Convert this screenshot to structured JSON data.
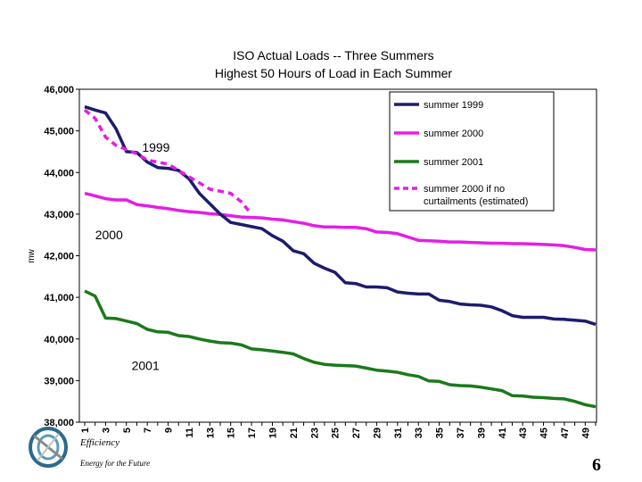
{
  "chart_data": {
    "type": "line",
    "title_lines": [
      "ISO Actual Loads -- Three Summers",
      "Highest 50 Hours of Load in Each Summer"
    ],
    "ylabel": "mw",
    "xlabel": "",
    "ylim": [
      38000,
      46000
    ],
    "yticks": [
      38000,
      39000,
      40000,
      41000,
      42000,
      43000,
      44000,
      45000,
      46000
    ],
    "ytick_labels": [
      "38,000",
      "39,000",
      "40,000",
      "41,000",
      "42,000",
      "43,000",
      "44,000",
      "45,000",
      "46,000"
    ],
    "xlim": [
      1,
      50
    ],
    "xticks": [
      1,
      3,
      5,
      7,
      9,
      11,
      13,
      15,
      17,
      19,
      21,
      23,
      25,
      27,
      29,
      31,
      33,
      35,
      37,
      39,
      41,
      43,
      45,
      47,
      49
    ],
    "xtick_labels": [
      "1",
      "3",
      "5",
      "7",
      "9",
      "11",
      "13",
      "15",
      "17",
      "19",
      "21",
      "23",
      "25",
      "27",
      "29",
      "31",
      "33",
      "35",
      "37",
      "39",
      "41",
      "43",
      "45",
      "47",
      "49"
    ],
    "grid": false,
    "legend_position": "top-right",
    "series": [
      {
        "name": "summer 1999",
        "color": "#1c1c6e",
        "style": "solid",
        "x": [
          1,
          2,
          3,
          4,
          5,
          6,
          7,
          8,
          9,
          10,
          11,
          12,
          13,
          14,
          15,
          16,
          17,
          18,
          19,
          20,
          21,
          22,
          23,
          24,
          25,
          26,
          27,
          28,
          29,
          30,
          31,
          32,
          33,
          34,
          35,
          36,
          37,
          38,
          39,
          40,
          41,
          42,
          43,
          44,
          45,
          46,
          47,
          48,
          49,
          50
        ],
        "values": [
          45580,
          45500,
          45430,
          45050,
          44500,
          44480,
          44250,
          44120,
          44100,
          44050,
          43850,
          43500,
          43250,
          43000,
          42800,
          42750,
          42700,
          42650,
          42480,
          42350,
          42120,
          42050,
          41820,
          41700,
          41600,
          41350,
          41330,
          41250,
          41250,
          41230,
          41130,
          41100,
          41080,
          41080,
          40930,
          40900,
          40840,
          40820,
          40810,
          40770,
          40680,
          40560,
          40520,
          40520,
          40520,
          40480,
          40470,
          40450,
          40430,
          40350
        ]
      },
      {
        "name": "summer 2000",
        "color": "#e41ee4",
        "style": "solid",
        "x": [
          1,
          2,
          3,
          4,
          5,
          6,
          7,
          8,
          9,
          10,
          11,
          12,
          13,
          14,
          15,
          16,
          17,
          18,
          19,
          20,
          21,
          22,
          23,
          24,
          25,
          26,
          27,
          28,
          29,
          30,
          31,
          32,
          33,
          34,
          35,
          36,
          37,
          38,
          39,
          40,
          41,
          42,
          43,
          44,
          45,
          46,
          47,
          48,
          49,
          50
        ],
        "values": [
          43500,
          43440,
          43370,
          43340,
          43340,
          43230,
          43200,
          43160,
          43130,
          43090,
          43060,
          43040,
          43010,
          42990,
          42960,
          42930,
          42920,
          42910,
          42880,
          42860,
          42820,
          42780,
          42720,
          42690,
          42690,
          42680,
          42680,
          42650,
          42570,
          42560,
          42530,
          42450,
          42370,
          42360,
          42350,
          42330,
          42330,
          42320,
          42310,
          42300,
          42300,
          42290,
          42290,
          42280,
          42270,
          42260,
          42240,
          42200,
          42150,
          42140
        ]
      },
      {
        "name": "summer 2001",
        "color": "#1a7a1a",
        "style": "solid",
        "x": [
          1,
          2,
          3,
          4,
          5,
          6,
          7,
          8,
          9,
          10,
          11,
          12,
          13,
          14,
          15,
          16,
          17,
          18,
          19,
          20,
          21,
          22,
          23,
          24,
          25,
          26,
          27,
          28,
          29,
          30,
          31,
          32,
          33,
          34,
          35,
          36,
          37,
          38,
          39,
          40,
          41,
          42,
          43,
          44,
          45,
          46,
          47,
          48,
          49,
          50
        ],
        "values": [
          41150,
          41030,
          40500,
          40490,
          40430,
          40370,
          40230,
          40170,
          40160,
          40080,
          40060,
          40000,
          39950,
          39910,
          39900,
          39860,
          39760,
          39740,
          39710,
          39680,
          39640,
          39530,
          39440,
          39390,
          39370,
          39360,
          39350,
          39300,
          39250,
          39230,
          39200,
          39140,
          39100,
          38990,
          38980,
          38900,
          38880,
          38870,
          38840,
          38800,
          38760,
          38640,
          38630,
          38600,
          38590,
          38570,
          38560,
          38500,
          38420,
          38370
        ]
      },
      {
        "name": "summer 2000 if no curtailments (estimated)",
        "legend_lines": [
          "summer 2000 if no",
          "curtailments  (estimated)"
        ],
        "color": "#e41ee4",
        "style": "dashed",
        "x": [
          1,
          2,
          3,
          4,
          5,
          6,
          7,
          8,
          9,
          10,
          11,
          12,
          13,
          14,
          15,
          16,
          17
        ],
        "values": [
          45500,
          45300,
          44850,
          44650,
          44550,
          44450,
          44300,
          44250,
          44200,
          44050,
          43900,
          43750,
          43600,
          43550,
          43500,
          43300,
          43000
        ]
      }
    ],
    "annotations": [
      {
        "text": "1999",
        "at_x": 6.5,
        "at_y": 44500
      },
      {
        "text": "2000",
        "at_x": 2,
        "at_y": 42400
      },
      {
        "text": "2001",
        "at_x": 5.5,
        "at_y": 39250
      }
    ]
  },
  "footer": {
    "brand_line": "Efficiency",
    "tagline": "Energy for the Future",
    "page_number": "6"
  }
}
